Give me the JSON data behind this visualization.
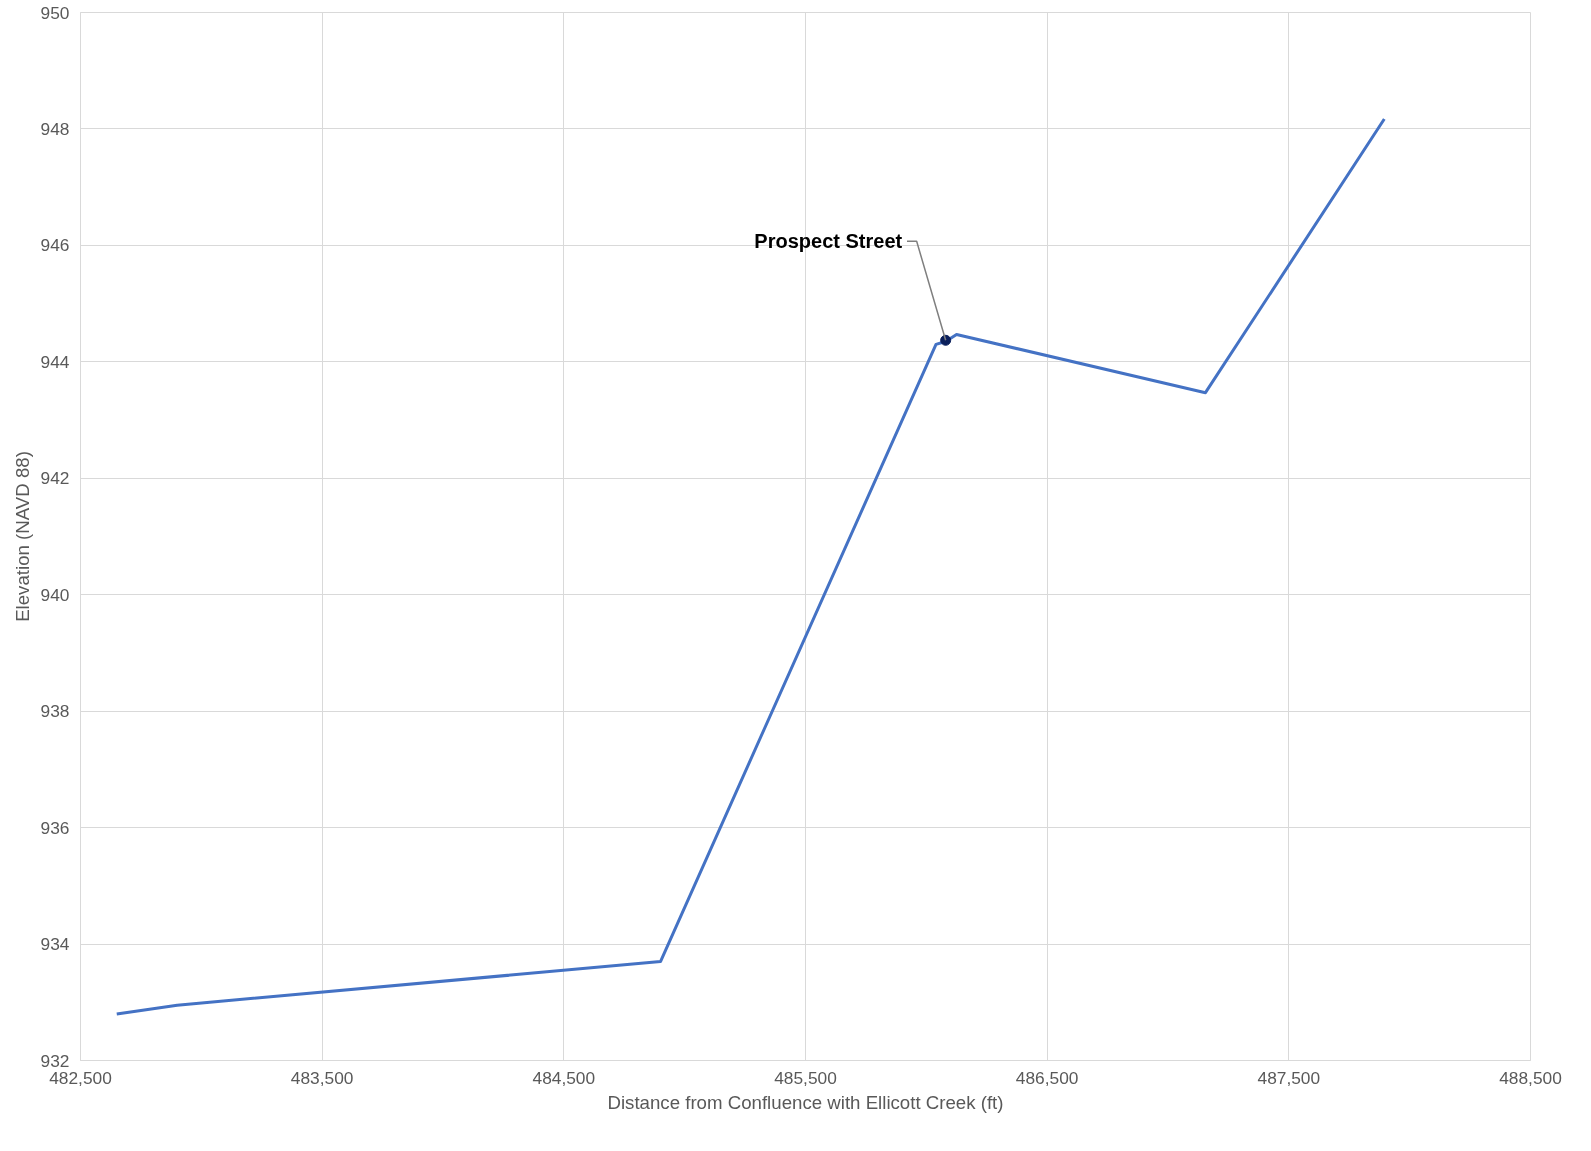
{
  "chart_data": {
    "type": "line",
    "xlabel": "Distance from Confluence with Ellicott Creek (ft)",
    "ylabel": "Elevation (NAVD 88)",
    "xlim": [
      482500,
      488500
    ],
    "xticks": [
      {
        "value": 482500,
        "label": "482,500"
      },
      {
        "value": 483500,
        "label": "483,500"
      },
      {
        "value": 484500,
        "label": "484,500"
      },
      {
        "value": 485500,
        "label": "485,500"
      },
      {
        "value": 486500,
        "label": "486,500"
      },
      {
        "value": 487500,
        "label": "487,500"
      },
      {
        "value": 488500,
        "label": "488,500"
      }
    ],
    "ylim": [
      932,
      950
    ],
    "yticks": [
      932,
      934,
      936,
      938,
      940,
      942,
      944,
      946,
      948,
      950
    ],
    "grid": true,
    "series": [
      {
        "color": "#4472c4",
        "x": [
          482650,
          482900,
          484900,
          486040,
          486080,
          486125,
          487155,
          487895
        ],
        "values": [
          932.8,
          932.95,
          933.7,
          944.3,
          944.35,
          944.47,
          943.47,
          948.17
        ]
      },
      {
        "type": "scatter",
        "marker": "circle",
        "color": "#0a1f5c",
        "x": [
          486080
        ],
        "values": [
          944.37
        ]
      }
    ],
    "annotations": [
      {
        "text": "Prospect Street",
        "x": 486080,
        "y": 944.37
      }
    ]
  }
}
